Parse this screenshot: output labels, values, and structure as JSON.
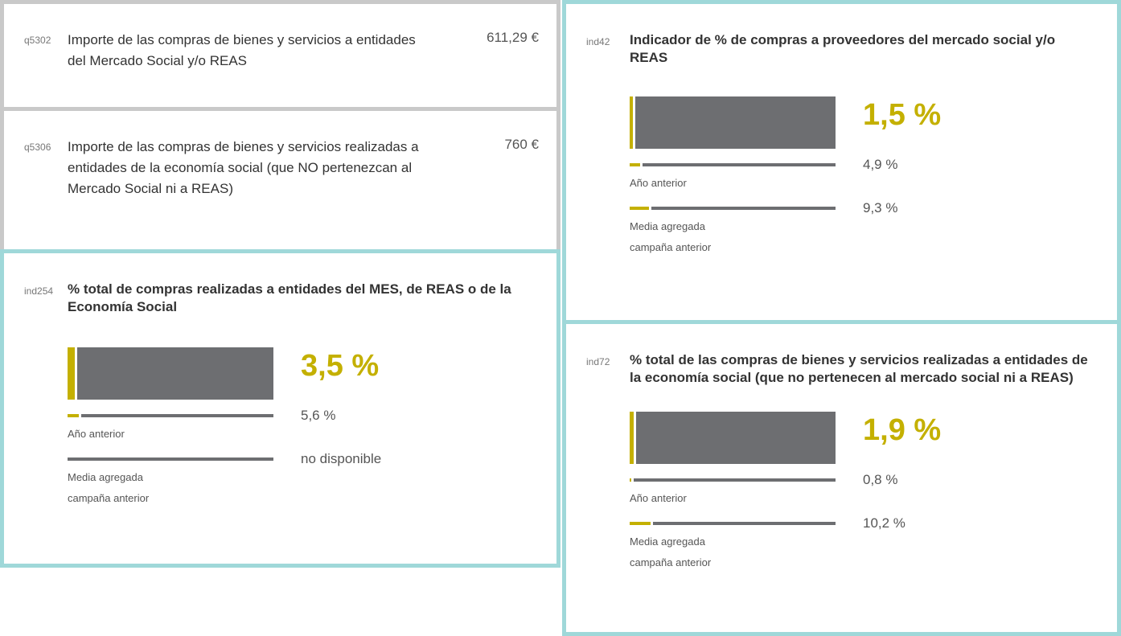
{
  "questions": [
    {
      "code": "q5302",
      "text": "Importe de las compras de bienes y servicios a entidades del Mercado Social y/o REAS",
      "amount": "611,29 €"
    },
    {
      "code": "q5306",
      "text": "Importe de las compras de bienes y servicios realizadas a entidades de la economía social (que NO pertenezcan al Mercado Social ni a REAS)",
      "amount": "760 €"
    }
  ],
  "indicators": [
    {
      "code": "ind254",
      "title": "% total de compras realizadas a entidades del MES, de REAS o de la Economía Social",
      "current": {
        "value": 3.5,
        "label": "3,5 %"
      },
      "previous": {
        "value": 5.6,
        "label": "5,6 %"
      },
      "previous_caption": "Año anterior",
      "average": {
        "value": null,
        "label": "no disponible"
      },
      "average_caption": "Media agregada campaña anterior"
    },
    {
      "code": "ind42",
      "title": "Indicador de % de compras a proveedores del mercado social y/o REAS",
      "current": {
        "value": 1.5,
        "label": "1,5 %"
      },
      "previous": {
        "value": 4.9,
        "label": "4,9 %"
      },
      "previous_caption": "Año anterior",
      "average": {
        "value": 9.3,
        "label": "9,3 %"
      },
      "average_caption": "Media agregada campaña anterior"
    },
    {
      "code": "ind72",
      "title": "% total de las compras de bienes y servicios realizadas a entidades de la economía social (que no pertenecen al mercado social ni a REAS)",
      "current": {
        "value": 1.9,
        "label": "1,9 %"
      },
      "previous": {
        "value": 0.8,
        "label": "0,8 %"
      },
      "previous_caption": "Año anterior",
      "average": {
        "value": 10.2,
        "label": "10,2 %"
      },
      "average_caption": "Media agregada campaña anterior"
    }
  ]
}
